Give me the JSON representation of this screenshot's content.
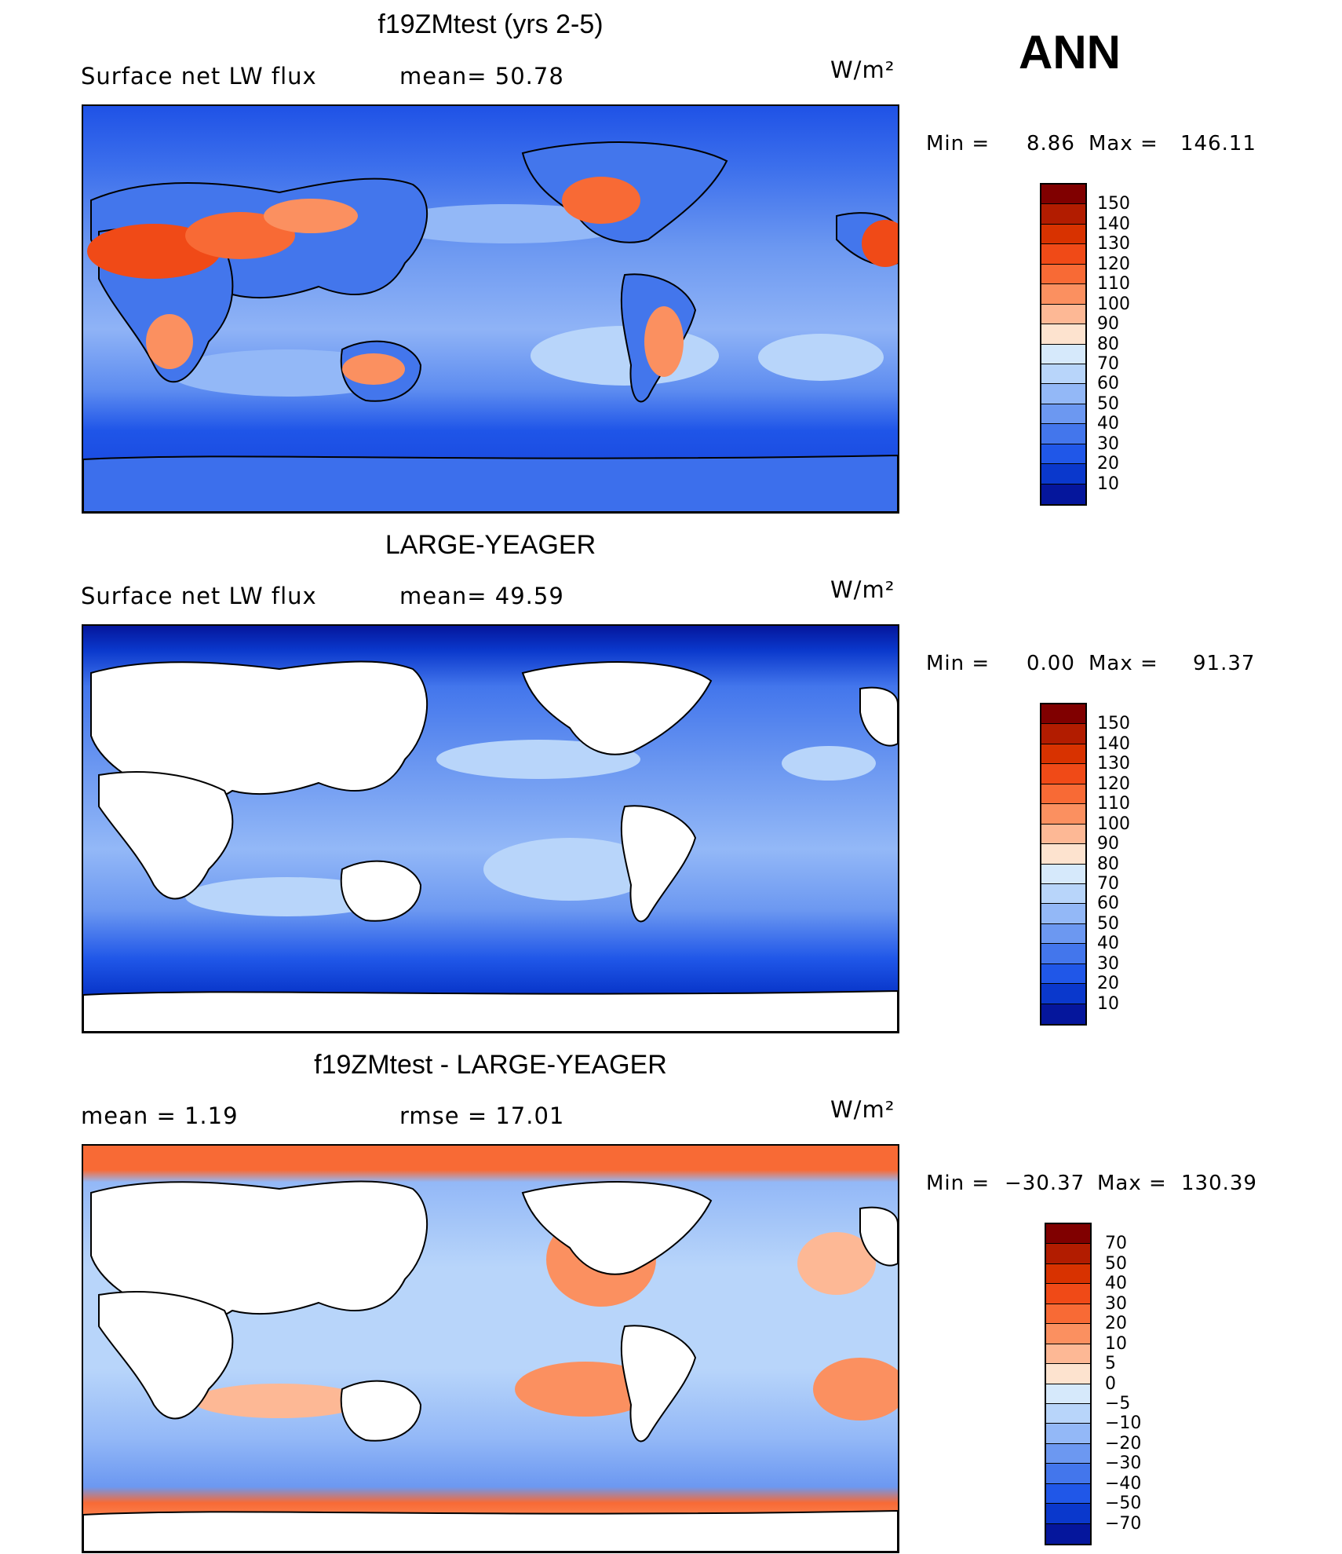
{
  "season": "ANN",
  "panels": [
    {
      "title": "f19ZMtest (yrs 2-5)",
      "left_label": "Surface net LW flux",
      "mid_label": "mean=  50.78",
      "units": "W/m²",
      "min_label": "Min =",
      "min_value": "8.86",
      "max_label": "Max =",
      "max_value": "146.11",
      "land_masked": false,
      "colorbar": {
        "levels": [
          "150",
          "140",
          "130",
          "120",
          "110",
          "100",
          "90",
          "80",
          "70",
          "60",
          "50",
          "40",
          "30",
          "20",
          "10"
        ],
        "colors": [
          "#800000",
          "#b21c00",
          "#d83200",
          "#f04a17",
          "#f86a35",
          "#fb9060",
          "#fdb895",
          "#fde3cf",
          "#d6e9fb",
          "#b8d5fa",
          "#93b8f7",
          "#6c98f1",
          "#4376ec",
          "#2057e8",
          "#0a38cc",
          "#05169c"
        ]
      }
    },
    {
      "title": "LARGE-YEAGER",
      "left_label": "Surface net LW flux",
      "mid_label": "mean=  49.59",
      "units": "W/m²",
      "min_label": "Min =",
      "min_value": "0.00",
      "max_label": "Max =",
      "max_value": "91.37",
      "land_masked": true,
      "colorbar": {
        "levels": [
          "150",
          "140",
          "130",
          "120",
          "110",
          "100",
          "90",
          "80",
          "70",
          "60",
          "50",
          "40",
          "30",
          "20",
          "10"
        ],
        "colors": [
          "#800000",
          "#b21c00",
          "#d83200",
          "#f04a17",
          "#f86a35",
          "#fb9060",
          "#fdb895",
          "#fde3cf",
          "#d6e9fb",
          "#b8d5fa",
          "#93b8f7",
          "#6c98f1",
          "#4376ec",
          "#2057e8",
          "#0a38cc",
          "#05169c"
        ]
      }
    },
    {
      "title": "f19ZMtest - LARGE-YEAGER",
      "left_label": "mean =    1.19",
      "mid_label": "rmse =    17.01",
      "units": "W/m²",
      "min_label": "Min =",
      "min_value": "−30.37",
      "max_label": "Max =",
      "max_value": "130.39",
      "land_masked": true,
      "colorbar": {
        "levels": [
          "70",
          "50",
          "40",
          "30",
          "20",
          "10",
          "5",
          "0",
          "−5",
          "−10",
          "−20",
          "−30",
          "−40",
          "−50",
          "−70"
        ],
        "colors": [
          "#800000",
          "#b21c00",
          "#d83200",
          "#f04a17",
          "#f86a35",
          "#fb9060",
          "#fdb895",
          "#fde3cf",
          "#d6e9fb",
          "#b8d5fa",
          "#93b8f7",
          "#6c98f1",
          "#4376ec",
          "#2057e8",
          "#0a38cc",
          "#05169c"
        ]
      }
    }
  ]
}
